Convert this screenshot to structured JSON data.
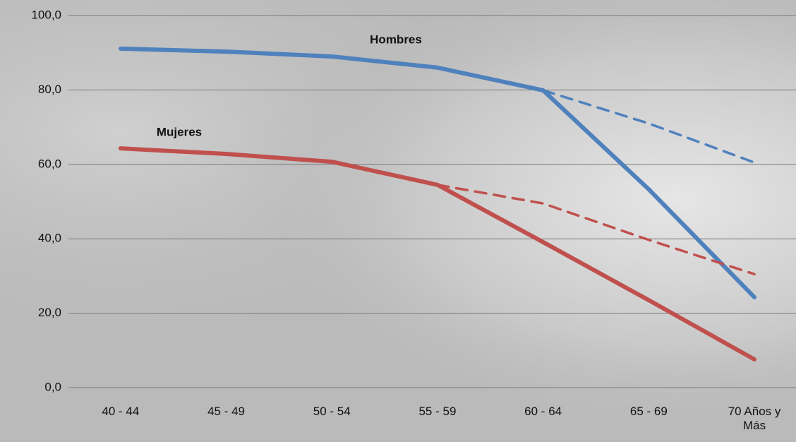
{
  "chart_data": {
    "type": "line",
    "categories": [
      "40 - 44",
      "45 - 49",
      "50 - 54",
      "55 - 59",
      "60 - 64",
      "65 - 69",
      "70 Años y Más"
    ],
    "series": [
      {
        "name": "Hombres",
        "color": "#4f81bd",
        "dashed": false,
        "values": [
          91.1,
          90.3,
          89.0,
          86.0,
          79.9,
          53.3,
          24.3
        ]
      },
      {
        "color": "#4f81bd",
        "dashed": true,
        "values": [
          null,
          null,
          null,
          null,
          79.9,
          71.0,
          60.5
        ]
      },
      {
        "name": "Mujeres",
        "color": "#c0504d",
        "dashed": false,
        "values": [
          64.3,
          62.8,
          60.7,
          54.5,
          39.1,
          23.5,
          7.6
        ]
      },
      {
        "color": "#c0504d",
        "dashed": true,
        "values": [
          null,
          null,
          null,
          54.5,
          49.5,
          39.7,
          30.5
        ]
      }
    ],
    "ylim": [
      0,
      100
    ],
    "yticks": [
      {
        "value": 0,
        "label": "0,0"
      },
      {
        "value": 20,
        "label": "20,0"
      },
      {
        "value": 40,
        "label": "40,0"
      },
      {
        "value": 60,
        "label": "60,0"
      },
      {
        "value": 80,
        "label": "80,0"
      },
      {
        "value": 100,
        "label": "100,0"
      }
    ],
    "grid": true
  }
}
